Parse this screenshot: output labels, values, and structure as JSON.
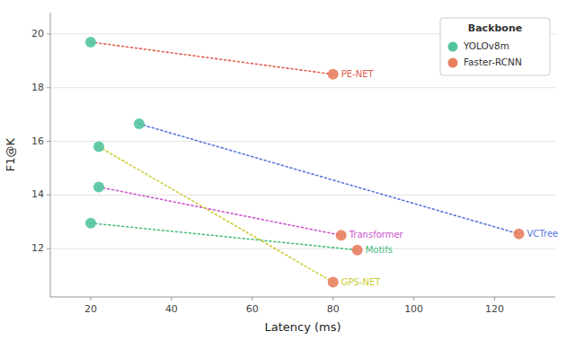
{
  "chart_data": {
    "type": "scatter",
    "xlabel": "Latency (ms)",
    "ylabel": "F1@K",
    "xlim": [
      10,
      135
    ],
    "ylim": [
      10.2,
      20.8
    ],
    "xticks": [
      20,
      40,
      60,
      80,
      100,
      120
    ],
    "yticks": [
      12,
      14,
      16,
      18,
      20
    ],
    "grid": true,
    "legend": "upper right",
    "legend_title": "Backbone",
    "line_style": "dotted",
    "categories": [
      "PE-NET",
      "VCTree",
      "Transformer",
      "Motifs",
      "GPS-NET"
    ],
    "colors": [
      "#e06050",
      "#5577dd",
      "#cc55cc",
      "#44bb77",
      "#cccc33"
    ],
    "series": [
      {
        "name": "YOLOv8m",
        "color": "#52c4a0",
        "marker": "circle",
        "x": [
          20,
          32,
          22,
          20,
          22
        ],
        "values": [
          19.7,
          16.65,
          14.3,
          12.95,
          15.8
        ]
      },
      {
        "name": "Faster-RCNN",
        "color": "#e88060",
        "marker": "circle",
        "x": [
          80,
          126,
          82,
          86,
          80
        ],
        "values": [
          18.5,
          12.55,
          12.5,
          11.95,
          10.75
        ]
      }
    ]
  }
}
